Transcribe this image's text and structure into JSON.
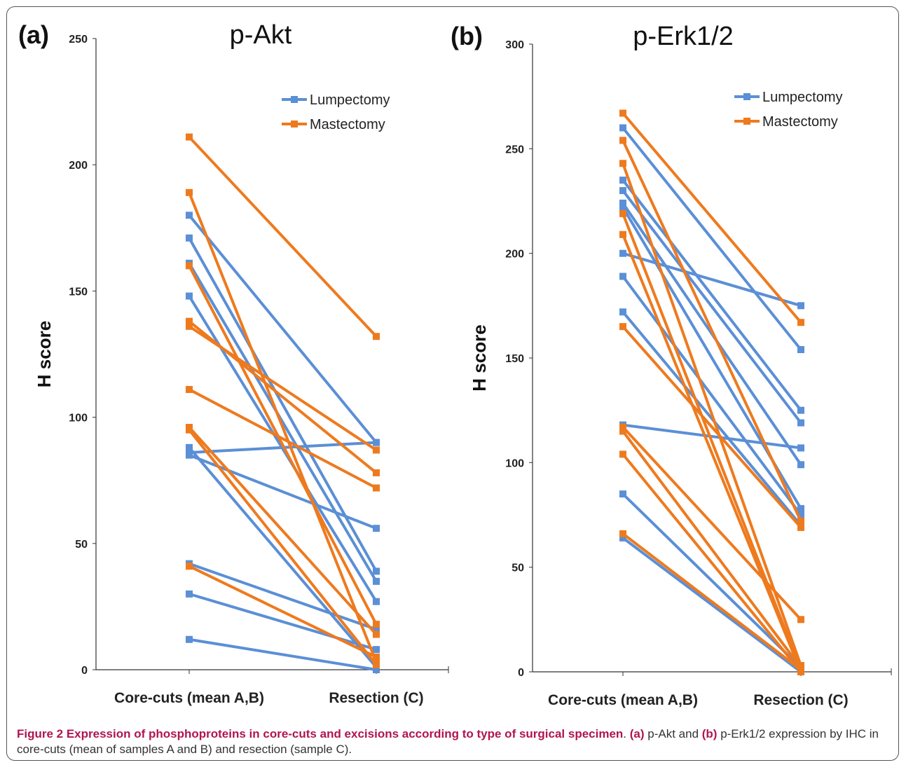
{
  "caption": {
    "title": "Figure 2 Expression of phosphoproteins in core-cuts and excisions according to type of surgical specimen",
    "sep": ". ",
    "a_tag": "(a)",
    "a_text": " p-Akt and ",
    "b_tag": "(b)",
    "b_text": " p-Erk1/2 expression by IHC in core-cuts (mean of samples A and B) and resection (sample C)."
  },
  "colors": {
    "lumpectomy": "#5b8fd6",
    "mastectomy": "#ee7a1e",
    "axis": "#333333",
    "caption_bold": "#b0154f"
  },
  "chart_data": [
    {
      "panel": "(a)",
      "type": "line",
      "title": "p-Akt",
      "xlabel": "",
      "ylabel": "H score",
      "categories": [
        "Core-cuts (mean A,B)",
        "Resection (C)"
      ],
      "ylim": [
        0,
        250
      ],
      "yticks": [
        0,
        50,
        100,
        150,
        200,
        250
      ],
      "legend": {
        "placement": "top-right",
        "entries": [
          "Lumpectomy",
          "Mastectomy"
        ]
      },
      "series": [
        {
          "group": "Lumpectomy",
          "values": [
            180,
            90
          ]
        },
        {
          "group": "Lumpectomy",
          "values": [
            171,
            39
          ]
        },
        {
          "group": "Lumpectomy",
          "values": [
            161,
            35
          ]
        },
        {
          "group": "Lumpectomy",
          "values": [
            148,
            27
          ]
        },
        {
          "group": "Lumpectomy",
          "values": [
            88,
            1
          ]
        },
        {
          "group": "Lumpectomy",
          "values": [
            86,
            90
          ]
        },
        {
          "group": "Lumpectomy",
          "values": [
            85,
            56
          ]
        },
        {
          "group": "Lumpectomy",
          "values": [
            42,
            16
          ]
        },
        {
          "group": "Lumpectomy",
          "values": [
            30,
            8
          ]
        },
        {
          "group": "Lumpectomy",
          "values": [
            12,
            0
          ]
        },
        {
          "group": "Mastectomy",
          "values": [
            211,
            132
          ]
        },
        {
          "group": "Mastectomy",
          "values": [
            189,
            3
          ]
        },
        {
          "group": "Mastectomy",
          "values": [
            160,
            18
          ]
        },
        {
          "group": "Mastectomy",
          "values": [
            138,
            78
          ]
        },
        {
          "group": "Mastectomy",
          "values": [
            136,
            87
          ]
        },
        {
          "group": "Mastectomy",
          "values": [
            111,
            72
          ]
        },
        {
          "group": "Mastectomy",
          "values": [
            96,
            14
          ]
        },
        {
          "group": "Mastectomy",
          "values": [
            95,
            2
          ]
        },
        {
          "group": "Mastectomy",
          "values": [
            41,
            5
          ]
        }
      ]
    },
    {
      "panel": "(b)",
      "type": "line",
      "title": "p-Erk1/2",
      "xlabel": "",
      "ylabel": "H score",
      "categories": [
        "Core-cuts (mean A,B)",
        "Resection (C)"
      ],
      "ylim": [
        0,
        300
      ],
      "yticks": [
        0,
        50,
        100,
        150,
        200,
        250,
        300
      ],
      "legend": {
        "placement": "top-right",
        "entries": [
          "Lumpectomy",
          "Mastectomy"
        ]
      },
      "series": [
        {
          "group": "Lumpectomy",
          "values": [
            260,
            154
          ]
        },
        {
          "group": "Lumpectomy",
          "values": [
            235,
            125
          ]
        },
        {
          "group": "Lumpectomy",
          "values": [
            230,
            119
          ]
        },
        {
          "group": "Lumpectomy",
          "values": [
            224,
            99
          ]
        },
        {
          "group": "Lumpectomy",
          "values": [
            222,
            78
          ]
        },
        {
          "group": "Lumpectomy",
          "values": [
            200,
            175
          ]
        },
        {
          "group": "Lumpectomy",
          "values": [
            189,
            75
          ]
        },
        {
          "group": "Lumpectomy",
          "values": [
            172,
            70
          ]
        },
        {
          "group": "Lumpectomy",
          "values": [
            118,
            107
          ]
        },
        {
          "group": "Lumpectomy",
          "values": [
            85,
            2
          ]
        },
        {
          "group": "Lumpectomy",
          "values": [
            64,
            0
          ]
        },
        {
          "group": "Mastectomy",
          "values": [
            267,
            167
          ]
        },
        {
          "group": "Mastectomy",
          "values": [
            254,
            72
          ]
        },
        {
          "group": "Mastectomy",
          "values": [
            243,
            3
          ]
        },
        {
          "group": "Mastectomy",
          "values": [
            219,
            1
          ]
        },
        {
          "group": "Mastectomy",
          "values": [
            209,
            0
          ]
        },
        {
          "group": "Mastectomy",
          "values": [
            165,
            69
          ]
        },
        {
          "group": "Mastectomy",
          "values": [
            117,
            25
          ]
        },
        {
          "group": "Mastectomy",
          "values": [
            115,
            2
          ]
        },
        {
          "group": "Mastectomy",
          "values": [
            104,
            0
          ]
        },
        {
          "group": "Mastectomy",
          "values": [
            66,
            1
          ]
        }
      ]
    }
  ]
}
